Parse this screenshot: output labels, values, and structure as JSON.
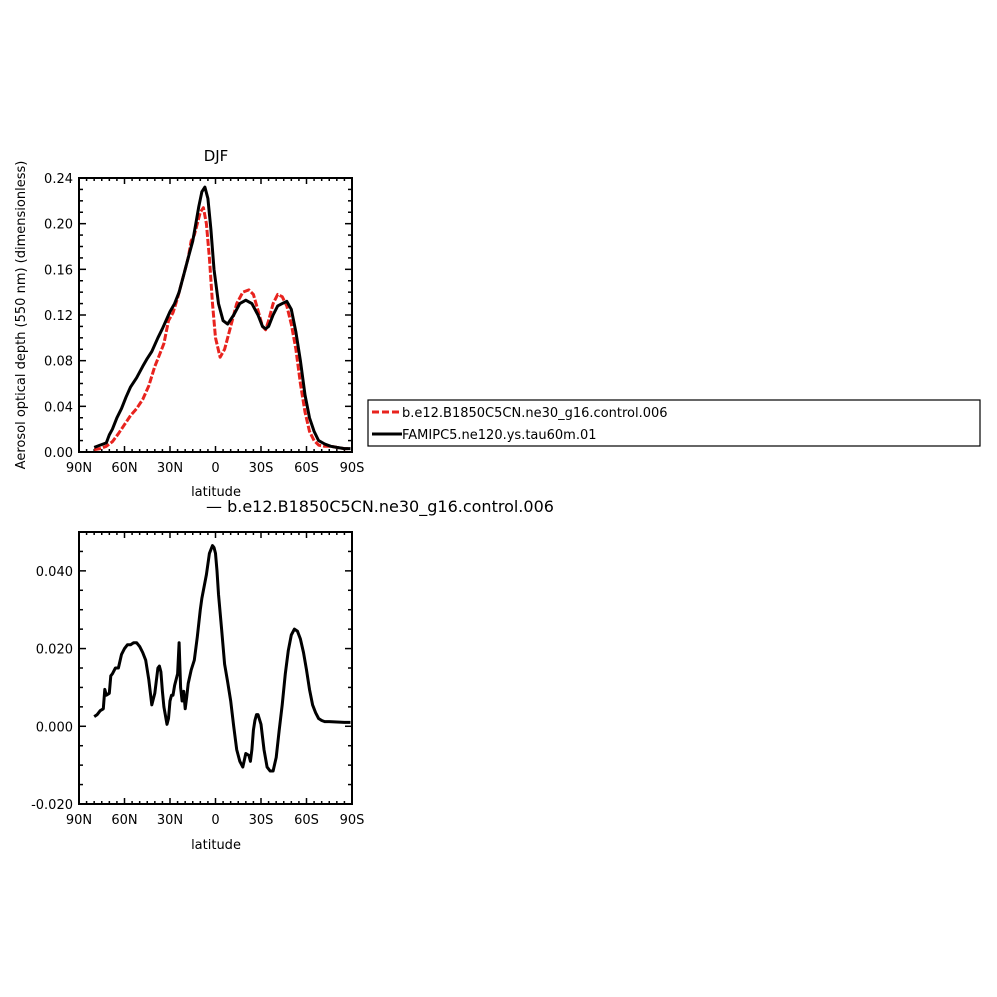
{
  "chart_data": [
    {
      "type": "line",
      "title": "DJF",
      "xlabel": "latitude",
      "ylabel": "Aerosol optical depth (550 nm) (dimensionless)",
      "xlim": [
        90,
        -90
      ],
      "ylim": [
        0.0,
        0.24
      ],
      "x_ticks": [
        90,
        60,
        30,
        0,
        -30,
        -60,
        -90
      ],
      "x_tick_labels": [
        "90N",
        "60N",
        "30N",
        "0",
        "30S",
        "60S",
        "90S"
      ],
      "y_ticks": [
        0.0,
        0.04,
        0.08,
        0.12,
        0.16,
        0.2,
        0.24
      ],
      "y_tick_labels": [
        "0.00",
        "0.04",
        "0.08",
        "0.12",
        "0.16",
        "0.20",
        "0.24"
      ],
      "legend_position": "right",
      "series": [
        {
          "name": "b.e12.B1850C5CN.ne30_g16.control.006",
          "color": "#e8231e",
          "dash": "dashed",
          "x": [
            80,
            76,
            72,
            68,
            64,
            60,
            56,
            52,
            48,
            44,
            40,
            37,
            34,
            31,
            28,
            25,
            22,
            20,
            18,
            16,
            14,
            12,
            10,
            8,
            6,
            4,
            2,
            0,
            -3,
            -6,
            -10,
            -14,
            -18,
            -22,
            -25,
            -28,
            -31,
            -33,
            -35,
            -38,
            -41,
            -44,
            -47,
            -50,
            -53,
            -56,
            -59,
            -62,
            -65,
            -68,
            -72,
            -76,
            -80,
            -85,
            -89
          ],
          "y": [
            0.002,
            0.003,
            0.005,
            0.009,
            0.016,
            0.024,
            0.032,
            0.038,
            0.046,
            0.058,
            0.075,
            0.085,
            0.095,
            0.115,
            0.122,
            0.135,
            0.15,
            0.16,
            0.17,
            0.185,
            0.19,
            0.2,
            0.21,
            0.214,
            0.2,
            0.17,
            0.13,
            0.1,
            0.083,
            0.09,
            0.11,
            0.13,
            0.14,
            0.142,
            0.138,
            0.124,
            0.11,
            0.107,
            0.115,
            0.13,
            0.138,
            0.136,
            0.128,
            0.112,
            0.09,
            0.06,
            0.035,
            0.018,
            0.01,
            0.006,
            0.005,
            0.005,
            0.004,
            0.003,
            0.003
          ]
        },
        {
          "name": "FAMIPC5.ne120.ys.tau60m.01",
          "color": "#000000",
          "dash": "solid",
          "x": [
            80,
            76,
            72,
            70,
            68,
            65,
            62,
            59,
            56,
            52,
            48,
            45,
            42,
            38,
            35,
            32,
            30,
            27,
            24,
            21,
            18,
            15,
            13,
            11,
            9,
            7,
            5,
            3,
            1,
            -2,
            -5,
            -8,
            -12,
            -16,
            -20,
            -24,
            -28,
            -31,
            -33,
            -35,
            -38,
            -41,
            -44,
            -47,
            -50,
            -53,
            -56,
            -59,
            -62,
            -65,
            -68,
            -72,
            -76,
            -80,
            -85,
            -89
          ],
          "y": [
            0.004,
            0.006,
            0.008,
            0.015,
            0.02,
            0.03,
            0.038,
            0.048,
            0.057,
            0.065,
            0.075,
            0.082,
            0.088,
            0.1,
            0.108,
            0.117,
            0.123,
            0.13,
            0.14,
            0.155,
            0.17,
            0.185,
            0.2,
            0.215,
            0.228,
            0.232,
            0.222,
            0.195,
            0.16,
            0.13,
            0.115,
            0.112,
            0.12,
            0.13,
            0.133,
            0.13,
            0.12,
            0.11,
            0.108,
            0.11,
            0.12,
            0.128,
            0.13,
            0.132,
            0.125,
            0.105,
            0.08,
            0.05,
            0.03,
            0.018,
            0.01,
            0.007,
            0.005,
            0.004,
            0.003,
            0.003
          ]
        }
      ]
    },
    {
      "type": "line",
      "title": "— b.e12.B1850C5CN.ne30_g16.control.006",
      "xlabel": "latitude",
      "ylabel": "",
      "xlim": [
        90,
        -90
      ],
      "ylim": [
        -0.02,
        0.05
      ],
      "x_ticks": [
        90,
        60,
        30,
        0,
        -30,
        -60,
        -90
      ],
      "x_tick_labels": [
        "90N",
        "60N",
        "30N",
        "0",
        "30S",
        "60S",
        "90S"
      ],
      "y_ticks": [
        -0.02,
        0.0,
        0.02,
        0.04
      ],
      "y_tick_labels": [
        "-0.020",
        "0.000",
        "0.020",
        "0.040"
      ],
      "series": [
        {
          "color": "#000000",
          "dash": "solid",
          "x": [
            80,
            78,
            76,
            74,
            73,
            72,
            70,
            69,
            68,
            66,
            64,
            62,
            60,
            58,
            56,
            54,
            52,
            50,
            48,
            46,
            44,
            42,
            40,
            38,
            37,
            36,
            35,
            34,
            32,
            31,
            30,
            29,
            28,
            27,
            25,
            24,
            23,
            22,
            21,
            20,
            19,
            18,
            16,
            14,
            12,
            10,
            9,
            8,
            6,
            4,
            2,
            1,
            0,
            -1,
            -2,
            -4,
            -6,
            -8,
            -10,
            -12,
            -14,
            -16,
            -18,
            -20,
            -22,
            -23,
            -24,
            -25,
            -26,
            -27,
            -28,
            -30,
            -32,
            -34,
            -36,
            -38,
            -40,
            -42,
            -44,
            -46,
            -48,
            -50,
            -52,
            -54,
            -56,
            -58,
            -60,
            -62,
            -64,
            -66,
            -68,
            -70,
            -72,
            -75,
            -80,
            -85,
            -89
          ],
          "y": [
            0.0025,
            0.003,
            0.004,
            0.0045,
            0.0095,
            0.008,
            0.0085,
            0.013,
            0.0135,
            0.015,
            0.015,
            0.0185,
            0.02,
            0.021,
            0.021,
            0.0215,
            0.0215,
            0.0205,
            0.019,
            0.017,
            0.012,
            0.0055,
            0.0085,
            0.015,
            0.0155,
            0.014,
            0.009,
            0.005,
            0.0005,
            0.002,
            0.0065,
            0.008,
            0.008,
            0.0105,
            0.0135,
            0.0215,
            0.01,
            0.0065,
            0.009,
            0.0045,
            0.0075,
            0.011,
            0.0145,
            0.017,
            0.023,
            0.03,
            0.033,
            0.035,
            0.039,
            0.0445,
            0.0465,
            0.046,
            0.0445,
            0.04,
            0.034,
            0.025,
            0.016,
            0.0115,
            0.0065,
            0.0,
            -0.006,
            -0.009,
            -0.0105,
            -0.007,
            -0.0075,
            -0.009,
            -0.006,
            -0.001,
            0.0015,
            0.003,
            0.003,
            0.0005,
            -0.006,
            -0.0105,
            -0.0115,
            -0.0115,
            -0.008,
            -0.001,
            0.0055,
            0.0135,
            0.0195,
            0.0235,
            0.025,
            0.0245,
            0.0225,
            0.019,
            0.0145,
            0.0095,
            0.0055,
            0.0035,
            0.002,
            0.0015,
            0.0012,
            0.0012,
            0.0011,
            0.001,
            0.001
          ]
        }
      ]
    }
  ]
}
